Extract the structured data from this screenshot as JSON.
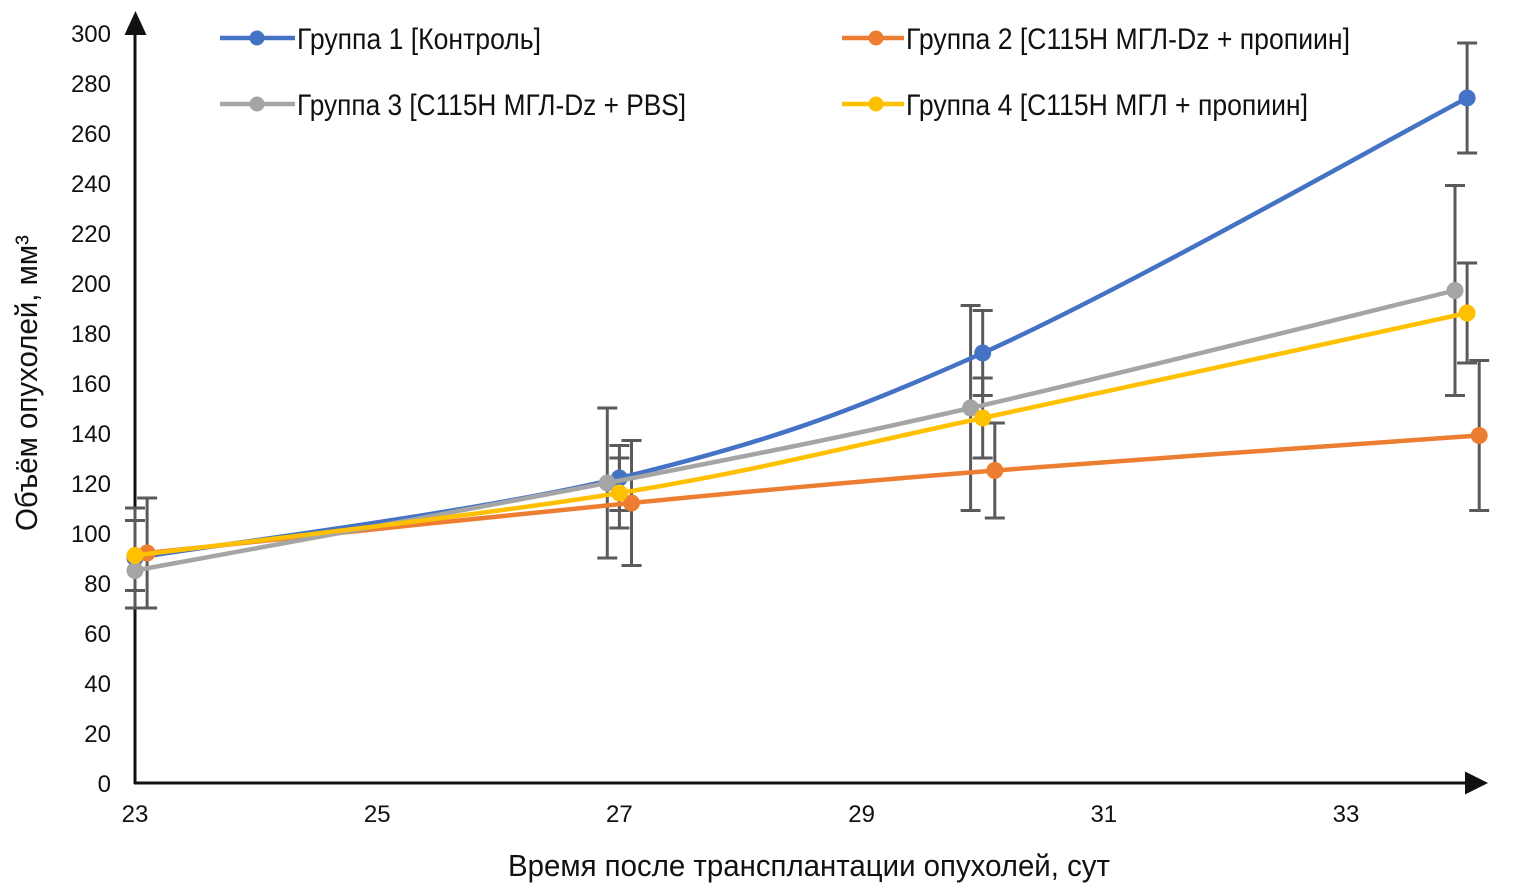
{
  "chart_data": {
    "type": "line",
    "title": "",
    "xlabel": "Время после трансплантации опухолей, сут",
    "ylabel": "Объём опухолей, мм³",
    "xlim": [
      23,
      34.2
    ],
    "ylim": [
      0,
      300
    ],
    "xticks": [
      23,
      25,
      27,
      29,
      31,
      33
    ],
    "xtick_labels": [
      "23",
      "25",
      "27",
      "29",
      "31",
      "33"
    ],
    "yticks": [
      0,
      20,
      40,
      60,
      80,
      100,
      120,
      140,
      160,
      180,
      200,
      220,
      240,
      260,
      280,
      300
    ],
    "ytick_labels": [
      "0",
      "20",
      "40",
      "60",
      "80",
      "100",
      "120",
      "140",
      "160",
      "180",
      "200",
      "220",
      "240",
      "260",
      "280",
      "300"
    ],
    "grid": false,
    "legend_position": "top",
    "smooth_lines": true,
    "error_bars": true,
    "series": [
      {
        "name": "Группа 1 [Контроль]",
        "color": "#4472C4",
        "x": [
          23,
          27,
          30,
          34
        ],
        "y": [
          90,
          122,
          172,
          274
        ],
        "error": [
          20,
          13,
          17,
          22
        ]
      },
      {
        "name": "Группа 2 [С115Н МГЛ-Dz + пропиин]",
        "color": "#ED7D31",
        "x": [
          23.1,
          27.1,
          30.1,
          34.1
        ],
        "y": [
          92,
          112,
          125,
          139
        ],
        "error": [
          22,
          25,
          19,
          30
        ]
      },
      {
        "name": "Группа 3 [С115Н МГЛ-Dz + PBS]",
        "color": "#A5A5A5",
        "x": [
          23,
          26.9,
          29.9,
          33.9
        ],
        "y": [
          85,
          120,
          150,
          197
        ],
        "error": [
          null,
          30,
          41,
          42
        ]
      },
      {
        "name": "Группа 4 [С115Н МГЛ + пропиин]",
        "color": "#FFC000",
        "x": [
          23,
          27,
          30,
          34
        ],
        "y": [
          91,
          116,
          146,
          188
        ],
        "error": [
          14,
          14,
          16,
          20
        ]
      }
    ],
    "axis_color": "#111111",
    "error_bar_color": "#5A5A5A"
  }
}
